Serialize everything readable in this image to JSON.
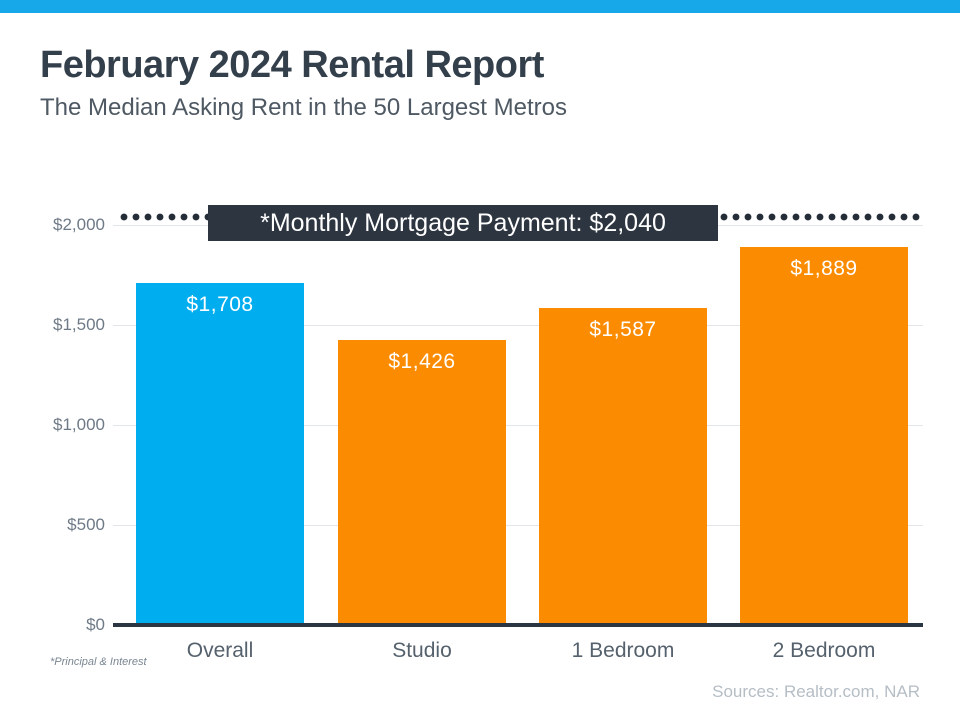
{
  "page": {
    "title": "February 2024 Rental Report",
    "subtitle": "The Median Asking Rent in the 50 Largest Metros",
    "footnote": "*Principal & Interest",
    "sources": "Sources: Realtor.com,  NAR"
  },
  "colors": {
    "top_strip": "#17A8EA",
    "bar_blue": "#00AEEF",
    "bar_orange": "#FB8B00",
    "annotation_bg": "#2D3540",
    "axis": "#2B3642",
    "gridline": "#E2E6EA",
    "dot": "#242C37"
  },
  "chart_data": {
    "type": "bar",
    "title": "February 2024 Rental Report",
    "subtitle": "The Median Asking Rent in the 50 Largest Metros",
    "categories": [
      "Overall",
      "Studio",
      "1 Bedroom",
      "2 Bedroom"
    ],
    "values": [
      1708,
      1426,
      1587,
      1889
    ],
    "value_labels": [
      "$1,708",
      "$1,426",
      "$1,587",
      "$1,889"
    ],
    "bar_colors": [
      "#00AEEF",
      "#FB8B00",
      "#FB8B00",
      "#FB8B00"
    ],
    "xlabel": "",
    "ylabel": "",
    "ylim": [
      0,
      2000
    ],
    "ytick_values": [
      0,
      500,
      1000,
      1500,
      2000
    ],
    "ytick_labels": [
      "$0",
      "$500",
      "$1,000",
      "$1,500",
      "$2,000"
    ],
    "grid": true,
    "legend": "none",
    "reference_line": {
      "label": "*Monthly Mortgage Payment: $2,040",
      "value": 2040,
      "style": "dotted"
    }
  }
}
